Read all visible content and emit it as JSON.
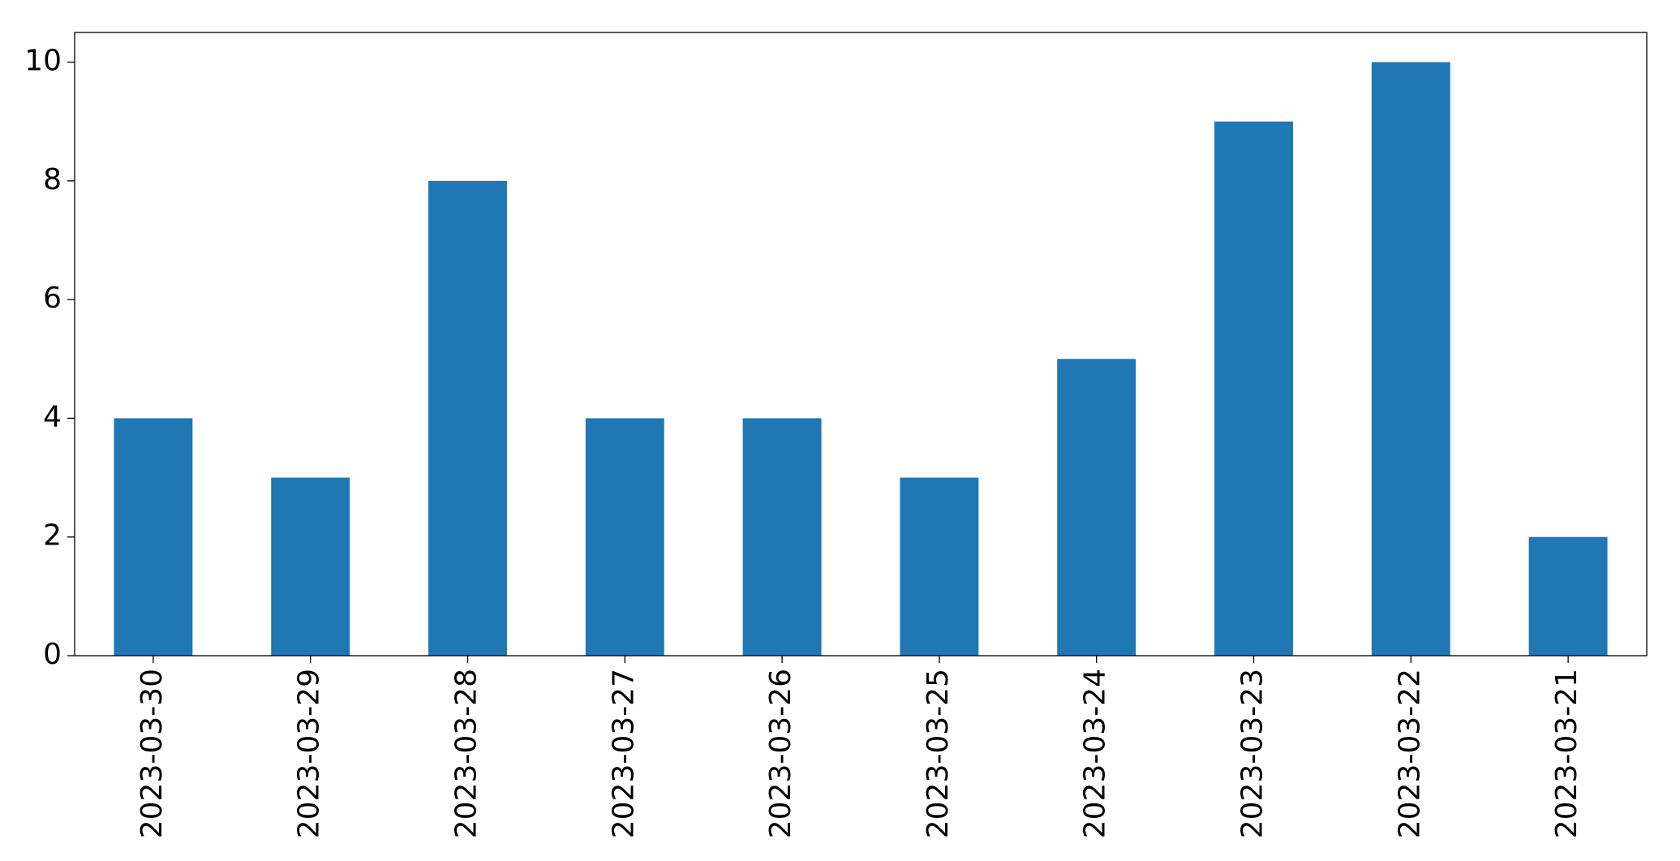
{
  "chart_data": {
    "type": "bar",
    "categories": [
      "2023-03-30",
      "2023-03-29",
      "2023-03-28",
      "2023-03-27",
      "2023-03-26",
      "2023-03-25",
      "2023-03-24",
      "2023-03-23",
      "2023-03-22",
      "2023-03-21"
    ],
    "values": [
      4,
      3,
      8,
      4,
      4,
      3,
      5,
      9,
      10,
      2
    ],
    "color": "#1f77b4",
    "ylim": [
      0,
      10.5
    ],
    "yticks": [
      0,
      2,
      4,
      6,
      8,
      10
    ],
    "grid": false
  }
}
